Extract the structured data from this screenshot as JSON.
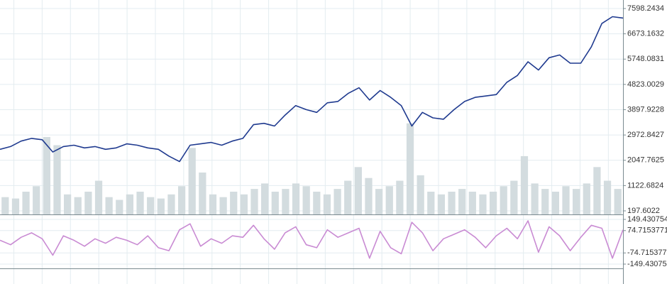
{
  "chart_data": [
    {
      "type": "line",
      "ylim": [
        68,
        7910
      ],
      "yticks": [
        197.6022,
        1122.6824,
        2047.7625,
        2972.8427,
        3897.9228,
        4823.0029,
        5748.0831,
        6673.1632,
        7598.2434
      ],
      "grid": true,
      "series": [
        {
          "type": "bar",
          "color": "#d3dcdf",
          "values": [
            700,
            650,
            900,
            1100,
            2900,
            2600,
            800,
            700,
            900,
            1300,
            700,
            600,
            800,
            900,
            700,
            650,
            800,
            1100,
            2500,
            1600,
            800,
            700,
            900,
            800,
            1000,
            1200,
            900,
            1000,
            1200,
            1100,
            900,
            800,
            1000,
            1300,
            1800,
            1400,
            1000,
            1100,
            1300,
            3400,
            1500,
            900,
            800,
            900,
            1000,
            900,
            800,
            900,
            1100,
            1300,
            2200,
            1200,
            1000,
            900,
            1100,
            1000,
            1200,
            1800,
            1300,
            1000
          ]
        },
        {
          "color": "#1f3a8f",
          "values": [
            2450,
            2550,
            2750,
            2850,
            2800,
            2350,
            2550,
            2600,
            2500,
            2550,
            2450,
            2500,
            2650,
            2600,
            2500,
            2450,
            2200,
            2000,
            2600,
            2650,
            2700,
            2600,
            2750,
            2850,
            3350,
            3400,
            3300,
            3700,
            4050,
            3900,
            3800,
            4150,
            4200,
            4500,
            4700,
            4250,
            4600,
            4350,
            4050,
            3300,
            3800,
            3600,
            3550,
            3900,
            4200,
            4350,
            4400,
            4450,
            4900,
            5150,
            5650,
            5350,
            5800,
            5900,
            5600,
            5600,
            6200,
            7050,
            7300,
            7250
          ]
        }
      ]
    },
    {
      "type": "line",
      "ylim": [
        -178,
        178
      ],
      "yticks": [
        149.4307542,
        74.7153771,
        -74.7153771,
        {
          "value": -149.4307542,
          "label": "-149.430754"
        }
      ],
      "grid": true,
      "series": [
        {
          "color": "#c98bd3",
          "values": [
            10,
            -20,
            30,
            60,
            20,
            -90,
            40,
            10,
            -30,
            20,
            -10,
            30,
            10,
            -20,
            40,
            -40,
            -60,
            80,
            120,
            -30,
            20,
            -10,
            40,
            30,
            110,
            20,
            -50,
            60,
            100,
            -20,
            -40,
            80,
            30,
            60,
            90,
            -110,
            70,
            -40,
            -80,
            130,
            60,
            -60,
            20,
            50,
            80,
            30,
            -40,
            40,
            90,
            20,
            140,
            -70,
            100,
            40,
            -60,
            30,
            110,
            90,
            -110,
            80
          ]
        }
      ]
    }
  ]
}
